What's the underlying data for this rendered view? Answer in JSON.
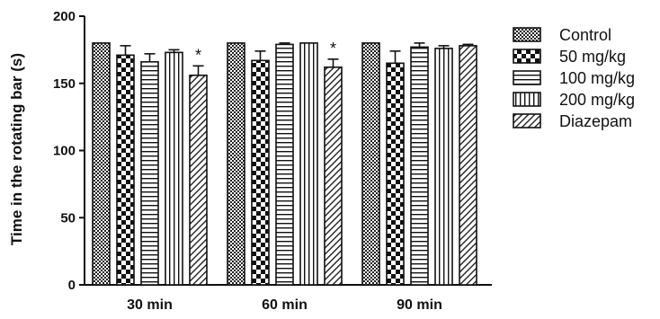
{
  "chart_data": {
    "type": "bar",
    "title": "",
    "xlabel": "",
    "ylabel": "Time in the rotating bar (s)",
    "ylim": [
      0,
      200
    ],
    "yticks": [
      0,
      50,
      100,
      150,
      200
    ],
    "categories": [
      "30 min",
      "60 min",
      "90 min"
    ],
    "grid": false,
    "legend_position": "right",
    "series": [
      {
        "name": "Control",
        "pattern": "checker-fine",
        "values": [
          180,
          180,
          180
        ],
        "errors": [
          0,
          0,
          0
        ],
        "significant": [
          false,
          false,
          false
        ]
      },
      {
        "name": "50 mg/kg",
        "pattern": "checker-coarse",
        "values": [
          171,
          167,
          165
        ],
        "errors": [
          7,
          7,
          9
        ],
        "significant": [
          false,
          false,
          false
        ]
      },
      {
        "name": "100 mg/kg",
        "pattern": "horizontal-lines",
        "values": [
          166,
          179,
          177
        ],
        "errors": [
          6,
          1,
          3
        ],
        "significant": [
          false,
          false,
          false
        ]
      },
      {
        "name": "200 mg/kg",
        "pattern": "vertical-lines",
        "values": [
          173,
          180,
          176
        ],
        "errors": [
          2,
          0,
          2
        ],
        "significant": [
          false,
          false,
          false
        ]
      },
      {
        "name": "Diazepam",
        "pattern": "diagonal-lines",
        "values": [
          156,
          162,
          178
        ],
        "errors": [
          7,
          6,
          1
        ],
        "significant": [
          true,
          true,
          false
        ]
      }
    ],
    "significance_marker": "*"
  }
}
